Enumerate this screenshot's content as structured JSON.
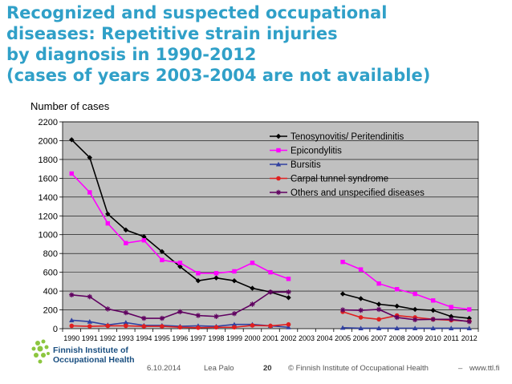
{
  "slide": {
    "title_lines": [
      "Recognized and suspected occupational",
      "diseases: Repetitive strain injuries",
      "by diagnosis in 1990-2012",
      "(cases of years 2003-2004 are not available)"
    ]
  },
  "footer": {
    "date": "6.10.2014",
    "author": "Lea Palo",
    "page": "20",
    "copyright": "© Finnish Institute of Occupational Health",
    "separator": "–",
    "url": "www.ttl.fi"
  },
  "logo": {
    "line1": "Finnish Institute of",
    "line2": "Occupational Health"
  },
  "chart_data": {
    "type": "line",
    "title": "Recognized and suspected occupational diseases: Repetitive strain injuries by diagnosis in 1990-2012",
    "ylabel": "Number of cases",
    "xlabel": "",
    "ylim": [
      0,
      2200
    ],
    "yticks": [
      0,
      200,
      400,
      600,
      800,
      1000,
      1200,
      1400,
      1600,
      1800,
      2000,
      2200
    ],
    "categories": [
      "1990",
      "1991",
      "1992",
      "1993",
      "1994",
      "1995",
      "1996",
      "1997",
      "1998",
      "1999",
      "2000",
      "2001",
      "2002",
      "2003",
      "2004",
      "2005",
      "2006",
      "2007",
      "2008",
      "2009",
      "2010",
      "2011",
      "2012"
    ],
    "grid": true,
    "plot_background": "#c0c0c0",
    "legend_position": "top-right",
    "series": [
      {
        "name": "Tenosynovitis/ Peritendinitis",
        "color": "#000000",
        "marker": "diamond",
        "values": [
          2010,
          1820,
          1220,
          1050,
          980,
          820,
          660,
          510,
          540,
          510,
          430,
          390,
          330,
          null,
          null,
          370,
          320,
          260,
          240,
          205,
          195,
          130,
          110
        ]
      },
      {
        "name": "Epicondylitis",
        "color": "#ff00ff",
        "marker": "square",
        "values": [
          1650,
          1450,
          1120,
          910,
          940,
          730,
          700,
          590,
          590,
          610,
          700,
          600,
          530,
          null,
          null,
          710,
          630,
          480,
          420,
          370,
          300,
          230,
          205
        ]
      },
      {
        "name": "Bursitis",
        "color": "#3040a0",
        "marker": "triangle",
        "values": [
          90,
          75,
          40,
          65,
          35,
          35,
          25,
          30,
          25,
          45,
          45,
          30,
          15,
          null,
          null,
          10,
          5,
          5,
          5,
          5,
          5,
          5,
          5
        ]
      },
      {
        "name": "Carpal tunnel syndrome",
        "color": "#e02020",
        "marker": "circle",
        "values": [
          30,
          25,
          30,
          30,
          25,
          25,
          15,
          10,
          15,
          15,
          35,
          30,
          45,
          null,
          null,
          180,
          120,
          100,
          140,
          120,
          100,
          90,
          80
        ]
      },
      {
        "name": "Others and unspecified diseases",
        "color": "#600060",
        "marker": "star",
        "values": [
          360,
          340,
          210,
          170,
          110,
          110,
          180,
          140,
          130,
          160,
          260,
          390,
          390,
          null,
          null,
          200,
          195,
          205,
          120,
          95,
          100,
          100,
          75
        ]
      }
    ]
  }
}
